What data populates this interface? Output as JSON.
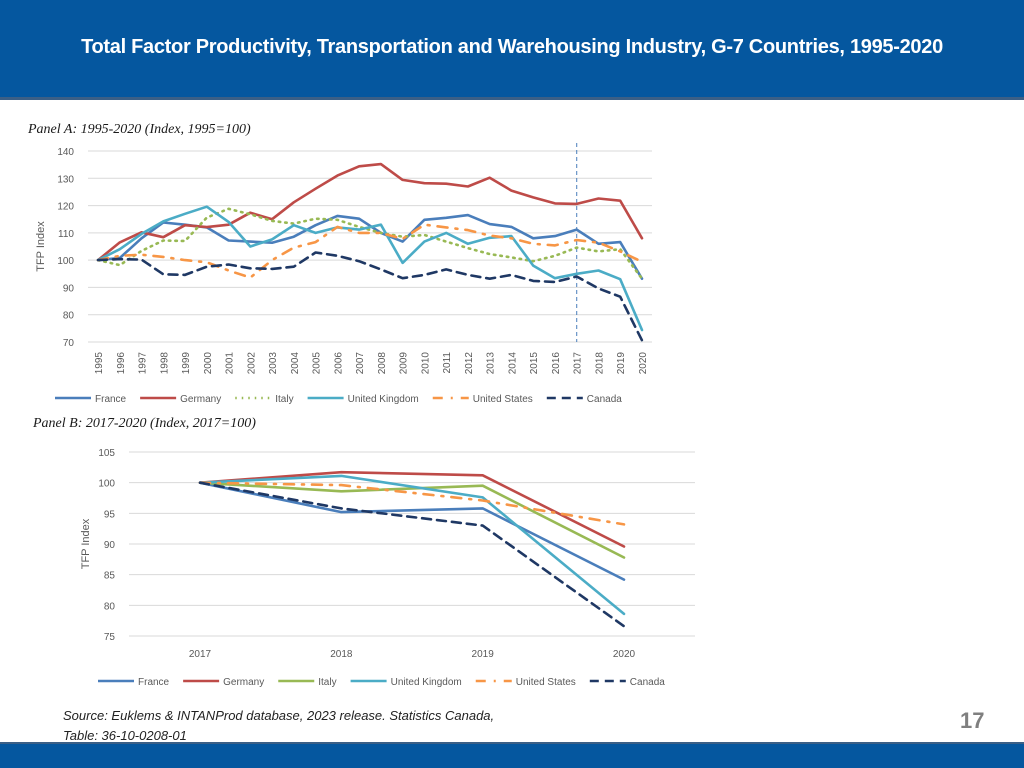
{
  "header": {
    "title": "Total Factor Productivity, Transportation and Warehousing Industry, G-7 Countries, 1995-2020"
  },
  "colors": {
    "header_bg": "#05579f",
    "France": "#4a7ebb",
    "Germany": "#be4b48",
    "Italy_A": "#98b954",
    "Italy_B": "#98b954",
    "United Kingdom": "#4bacc6",
    "United States": "#f79646",
    "Canada": "#1f3864"
  },
  "source": {
    "line1": "Source: Euklems & INTANProd database, 2023 release. Statistics Canada,",
    "line2": "Table: 36-10-0208-01"
  },
  "page_number": "17",
  "chart_data": [
    {
      "type": "line",
      "title": "Panel A: 1995-2020 (Index, 1995=100)",
      "xlabel": "",
      "ylabel": "TFP Index",
      "ylim": [
        70,
        140
      ],
      "yticks": [
        70,
        80,
        90,
        100,
        110,
        120,
        130,
        140
      ],
      "grid": true,
      "legend": "bottom",
      "reference_line_x": "2017",
      "x": [
        "1995",
        "1996",
        "1997",
        "1998",
        "1999",
        "2000",
        "2001",
        "2002",
        "2003",
        "2004",
        "2005",
        "2006",
        "2007",
        "2008",
        "2009",
        "2010",
        "2011",
        "2012",
        "2013",
        "2014",
        "2015",
        "2016",
        "2017",
        "2018",
        "2019",
        "2020"
      ],
      "series": [
        {
          "name": "France",
          "style": "solid",
          "values": [
            100,
            100.8,
            108,
            113.8,
            113,
            112,
            107.2,
            106.8,
            106.4,
            108.6,
            112.8,
            116.2,
            115.2,
            110,
            106.8,
            114.8,
            115.5,
            116.5,
            113.2,
            112.2,
            108,
            108.8,
            111.2,
            106,
            106.6,
            93.2
          ]
        },
        {
          "name": "Germany",
          "style": "solid",
          "values": [
            100,
            106.5,
            110.2,
            108.4,
            112.8,
            112.1,
            113,
            117.4,
            115,
            121.2,
            126.2,
            131,
            134.4,
            135.2,
            129.4,
            128.2,
            128,
            127,
            130.2,
            125.5,
            123,
            120.8,
            120.6,
            122.6,
            121.8,
            108
          ]
        },
        {
          "name": "Italy",
          "style": "dotted",
          "values": [
            100,
            98.2,
            103.4,
            107.2,
            107,
            115.6,
            118.8,
            116.8,
            114.4,
            113.4,
            115.2,
            114.8,
            112.2,
            110,
            108.6,
            109.2,
            106.8,
            104.4,
            102.2,
            101,
            99.6,
            101.6,
            104.6,
            103.2,
            104,
            93.2
          ]
        },
        {
          "name": "United Kingdom",
          "style": "solid",
          "values": [
            100,
            104,
            109.6,
            114.2,
            117,
            119.6,
            114,
            105,
            107.6,
            112.8,
            110,
            112,
            111.2,
            113,
            99,
            106.8,
            110,
            106,
            108.2,
            108.8,
            98,
            93.4,
            95,
            96.2,
            93,
            74.4
          ]
        },
        {
          "name": "United States",
          "style": "dashdot",
          "values": [
            100,
            101.6,
            102,
            101.2,
            100,
            99.2,
            96.2,
            93.6,
            100,
            104.6,
            106.6,
            112.2,
            110,
            110,
            107.8,
            113,
            112,
            111,
            109,
            108,
            106,
            105.4,
            107.4,
            106.4,
            103.2,
            99.4
          ]
        },
        {
          "name": "Canada",
          "style": "dashed",
          "values": [
            100,
            100.4,
            100.2,
            94.8,
            94.6,
            97.6,
            98.4,
            97,
            96.8,
            97.6,
            102.8,
            101.6,
            99.6,
            96.6,
            93.4,
            94.6,
            96.6,
            94.6,
            93.2,
            94.6,
            92.4,
            92,
            94,
            89.6,
            86.6,
            70.6
          ]
        }
      ]
    },
    {
      "type": "line",
      "title": "Panel B: 2017-2020 (Index, 2017=100)",
      "xlabel": "",
      "ylabel": "TFP Index",
      "ylim": [
        75,
        105
      ],
      "yticks": [
        75,
        80,
        85,
        90,
        95,
        100,
        105
      ],
      "grid": true,
      "legend": "bottom",
      "x": [
        "2017",
        "2018",
        "2019",
        "2020"
      ],
      "series": [
        {
          "name": "France",
          "style": "solid",
          "values": [
            100,
            95.2,
            95.8,
            84.2
          ]
        },
        {
          "name": "Germany",
          "style": "solid",
          "values": [
            100,
            101.7,
            101.2,
            89.6
          ]
        },
        {
          "name": "Italy",
          "style": "solid",
          "values": [
            100,
            98.6,
            99.5,
            87.8
          ]
        },
        {
          "name": "United Kingdom",
          "style": "solid",
          "values": [
            100,
            101.1,
            97.6,
            78.6
          ]
        },
        {
          "name": "United States",
          "style": "dashdot",
          "values": [
            100,
            99.6,
            97.1,
            93.2
          ]
        },
        {
          "name": "Canada",
          "style": "dashed",
          "values": [
            100,
            95.8,
            93,
            76.6
          ]
        }
      ]
    }
  ]
}
